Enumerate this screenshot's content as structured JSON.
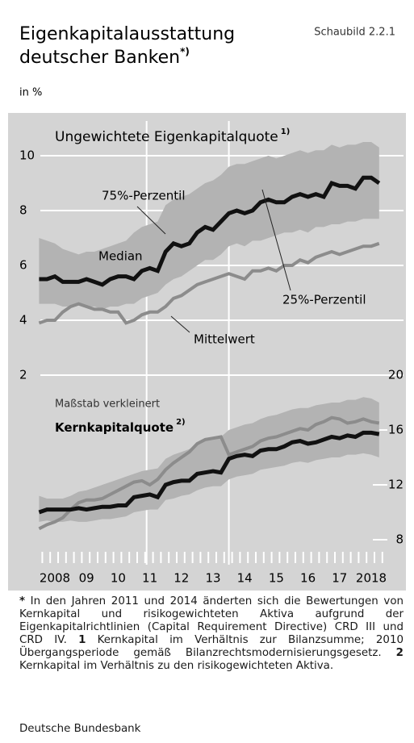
{
  "chart_data": {
    "type": "line",
    "title": [
      "Eigenkapitalausstattung",
      "deutscher Banken"
    ],
    "title_note": "*)",
    "figure_label": "Schaubild 2.2.1",
    "unit": "in %",
    "x": [
      2008,
      2008.25,
      2008.5,
      2008.75,
      2009,
      2009.25,
      2009.5,
      2009.75,
      2010,
      2010.25,
      2010.5,
      2010.75,
      2011,
      2011.25,
      2011.5,
      2011.75,
      2012,
      2012.25,
      2012.5,
      2012.75,
      2013,
      2013.25,
      2013.5,
      2013.75,
      2014,
      2014.25,
      2014.5,
      2014.75,
      2015,
      2015.25,
      2015.5,
      2015.75,
      2016,
      2016.25,
      2016.5,
      2016.75,
      2017,
      2017.25,
      2017.5,
      2017.75,
      2018,
      2018.25,
      2018.5,
      2018.75
    ],
    "xlim": [
      2008,
      2019
    ],
    "xticks": [
      {
        "value": 2008.5,
        "label": "2008"
      },
      {
        "value": 2009.5,
        "label": "09"
      },
      {
        "value": 2010.5,
        "label": "10"
      },
      {
        "value": 2011.5,
        "label": "11"
      },
      {
        "value": 2012.5,
        "label": "12"
      },
      {
        "value": 2013.5,
        "label": "13"
      },
      {
        "value": 2014.5,
        "label": "14"
      },
      {
        "value": 2015.5,
        "label": "15"
      },
      {
        "value": 2016.5,
        "label": "16"
      },
      {
        "value": 2017.5,
        "label": "17"
      },
      {
        "value": 2018.5,
        "label": "2018"
      }
    ],
    "ylim": [
      -5,
      11
    ],
    "yticks": [
      2,
      4,
      6,
      8,
      10
    ],
    "y2lim": [
      6,
      38
    ],
    "y2ticks": [
      8,
      12,
      16,
      20
    ],
    "vlines": [
      2011.4,
      2014
    ],
    "grid": true,
    "series": [
      {
        "style": "band",
        "axis": "y",
        "color": "#b3b3b3",
        "high": [
          7.0,
          6.9,
          6.8,
          6.6,
          6.5,
          6.4,
          6.5,
          6.5,
          6.6,
          6.7,
          6.8,
          6.9,
          7.2,
          7.4,
          7.5,
          7.6,
          8.2,
          8.4,
          8.5,
          8.6,
          8.8,
          9.0,
          9.1,
          9.3,
          9.6,
          9.7,
          9.7,
          9.8,
          9.9,
          10.0,
          9.9,
          10.0,
          10.1,
          10.2,
          10.1,
          10.2,
          10.2,
          10.4,
          10.3,
          10.4,
          10.4,
          10.5,
          10.5,
          10.3
        ],
        "low": [
          4.6,
          4.6,
          4.6,
          4.5,
          4.5,
          4.6,
          4.5,
          4.5,
          4.4,
          4.5,
          4.5,
          4.6,
          4.6,
          4.8,
          4.9,
          5.0,
          5.3,
          5.5,
          5.6,
          5.8,
          6.0,
          6.2,
          6.2,
          6.4,
          6.7,
          6.8,
          6.7,
          6.9,
          6.9,
          7.0,
          7.1,
          7.2,
          7.2,
          7.3,
          7.2,
          7.4,
          7.4,
          7.5,
          7.5,
          7.6,
          7.6,
          7.7,
          7.7,
          7.7
        ]
      },
      {
        "style": "band",
        "axis": "y2",
        "color": "#b3b3b3",
        "high": [
          11.2,
          11.0,
          11.0,
          11.0,
          11.2,
          11.5,
          11.6,
          11.8,
          12.0,
          12.2,
          12.4,
          12.6,
          12.8,
          13.0,
          13.1,
          13.2,
          13.9,
          14.2,
          14.4,
          14.6,
          15.0,
          15.2,
          15.4,
          15.5,
          16.0,
          16.2,
          16.4,
          16.5,
          16.8,
          17.0,
          17.1,
          17.3,
          17.5,
          17.6,
          17.6,
          17.8,
          17.9,
          18.0,
          18.0,
          18.2,
          18.2,
          18.4,
          18.3,
          18.0
        ],
        "low": [
          9.3,
          9.4,
          9.3,
          9.3,
          9.4,
          9.3,
          9.3,
          9.4,
          9.5,
          9.5,
          9.6,
          9.7,
          10.0,
          10.1,
          10.2,
          10.2,
          10.9,
          11.0,
          11.2,
          11.3,
          11.6,
          11.8,
          11.9,
          11.9,
          12.4,
          12.6,
          12.7,
          12.8,
          13.1,
          13.2,
          13.3,
          13.4,
          13.6,
          13.7,
          13.6,
          13.8,
          13.9,
          14.0,
          14.0,
          14.2,
          14.2,
          14.3,
          14.2,
          14.0
        ]
      },
      {
        "style": "line",
        "axis": "y",
        "name": "Mittelwert",
        "color": "#8c8c8c",
        "width": 4,
        "values": [
          3.9,
          4.0,
          4.0,
          4.3,
          4.5,
          4.6,
          4.5,
          4.4,
          4.4,
          4.3,
          4.3,
          3.9,
          4.0,
          4.2,
          4.3,
          4.3,
          4.5,
          4.8,
          4.9,
          5.1,
          5.3,
          5.4,
          5.5,
          5.6,
          5.7,
          5.6,
          5.5,
          5.8,
          5.8,
          5.9,
          5.8,
          6.0,
          6.0,
          6.2,
          6.1,
          6.3,
          6.4,
          6.5,
          6.4,
          6.5,
          6.6,
          6.7,
          6.7,
          6.8
        ]
      },
      {
        "style": "line",
        "axis": "y",
        "name": "Median",
        "color": "#111111",
        "width": 5,
        "values": [
          5.5,
          5.5,
          5.6,
          5.4,
          5.4,
          5.4,
          5.5,
          5.4,
          5.3,
          5.5,
          5.6,
          5.6,
          5.5,
          5.8,
          5.9,
          5.8,
          6.5,
          6.8,
          6.7,
          6.8,
          7.2,
          7.4,
          7.3,
          7.6,
          7.9,
          8.0,
          7.9,
          8.0,
          8.3,
          8.4,
          8.3,
          8.3,
          8.5,
          8.6,
          8.5,
          8.6,
          8.5,
          9.0,
          8.9,
          8.9,
          8.8,
          9.2,
          9.2,
          9.0
        ]
      },
      {
        "style": "line",
        "axis": "y2",
        "color": "#8c8c8c",
        "width": 4,
        "values": [
          8.8,
          9.1,
          9.3,
          9.6,
          10.2,
          10.7,
          10.9,
          10.9,
          11.0,
          11.3,
          11.6,
          11.9,
          12.2,
          12.3,
          12.0,
          12.4,
          13.1,
          13.6,
          14.0,
          14.4,
          15.0,
          15.3,
          15.4,
          15.5,
          14.2,
          14.4,
          14.6,
          14.8,
          15.2,
          15.4,
          15.5,
          15.7,
          15.9,
          16.1,
          16.0,
          16.4,
          16.6,
          16.9,
          16.8,
          16.5,
          16.6,
          16.8,
          16.6,
          16.5
        ]
      },
      {
        "style": "line",
        "axis": "y2",
        "color": "#111111",
        "width": 5,
        "values": [
          10.0,
          10.2,
          10.2,
          10.2,
          10.2,
          10.3,
          10.2,
          10.3,
          10.4,
          10.4,
          10.5,
          10.5,
          11.1,
          11.2,
          11.3,
          11.1,
          12.0,
          12.2,
          12.3,
          12.3,
          12.8,
          12.9,
          13.0,
          12.9,
          13.9,
          14.1,
          14.2,
          14.1,
          14.5,
          14.6,
          14.6,
          14.8,
          15.1,
          15.2,
          15.0,
          15.1,
          15.3,
          15.5,
          15.4,
          15.6,
          15.5,
          15.8,
          15.8,
          15.7
        ]
      }
    ],
    "panel_titles": [
      {
        "text": "Ungewichtete Eigenkapitalquote",
        "note": "1)"
      },
      {
        "text": "Kernkapitalquote",
        "note": "2)"
      }
    ],
    "annotations": [
      "75%-Perzentil",
      "25%-Perzentil",
      "Maßstab verkleinert"
    ],
    "footnote": [
      "*",
      " In den Jahren 2011 und 2014 änderten sich die Bewertungen von Kernkapital und risikogewichteten Aktiva aufgrund der Eigenkapitalrichtlinien (Capital Requirement Directive) CRD III und CRD IV. ",
      "1",
      " Kernkapital im Verhältnis zur Bilanzsumme; 2010 Übergangsperiode gemäß Bilanzrechtsmodernisierungsgesetz. ",
      "2",
      " Kernkapital im Verhältnis zu den risikogewichteten Aktiva."
    ],
    "source": "Deutsche Bundesbank"
  }
}
